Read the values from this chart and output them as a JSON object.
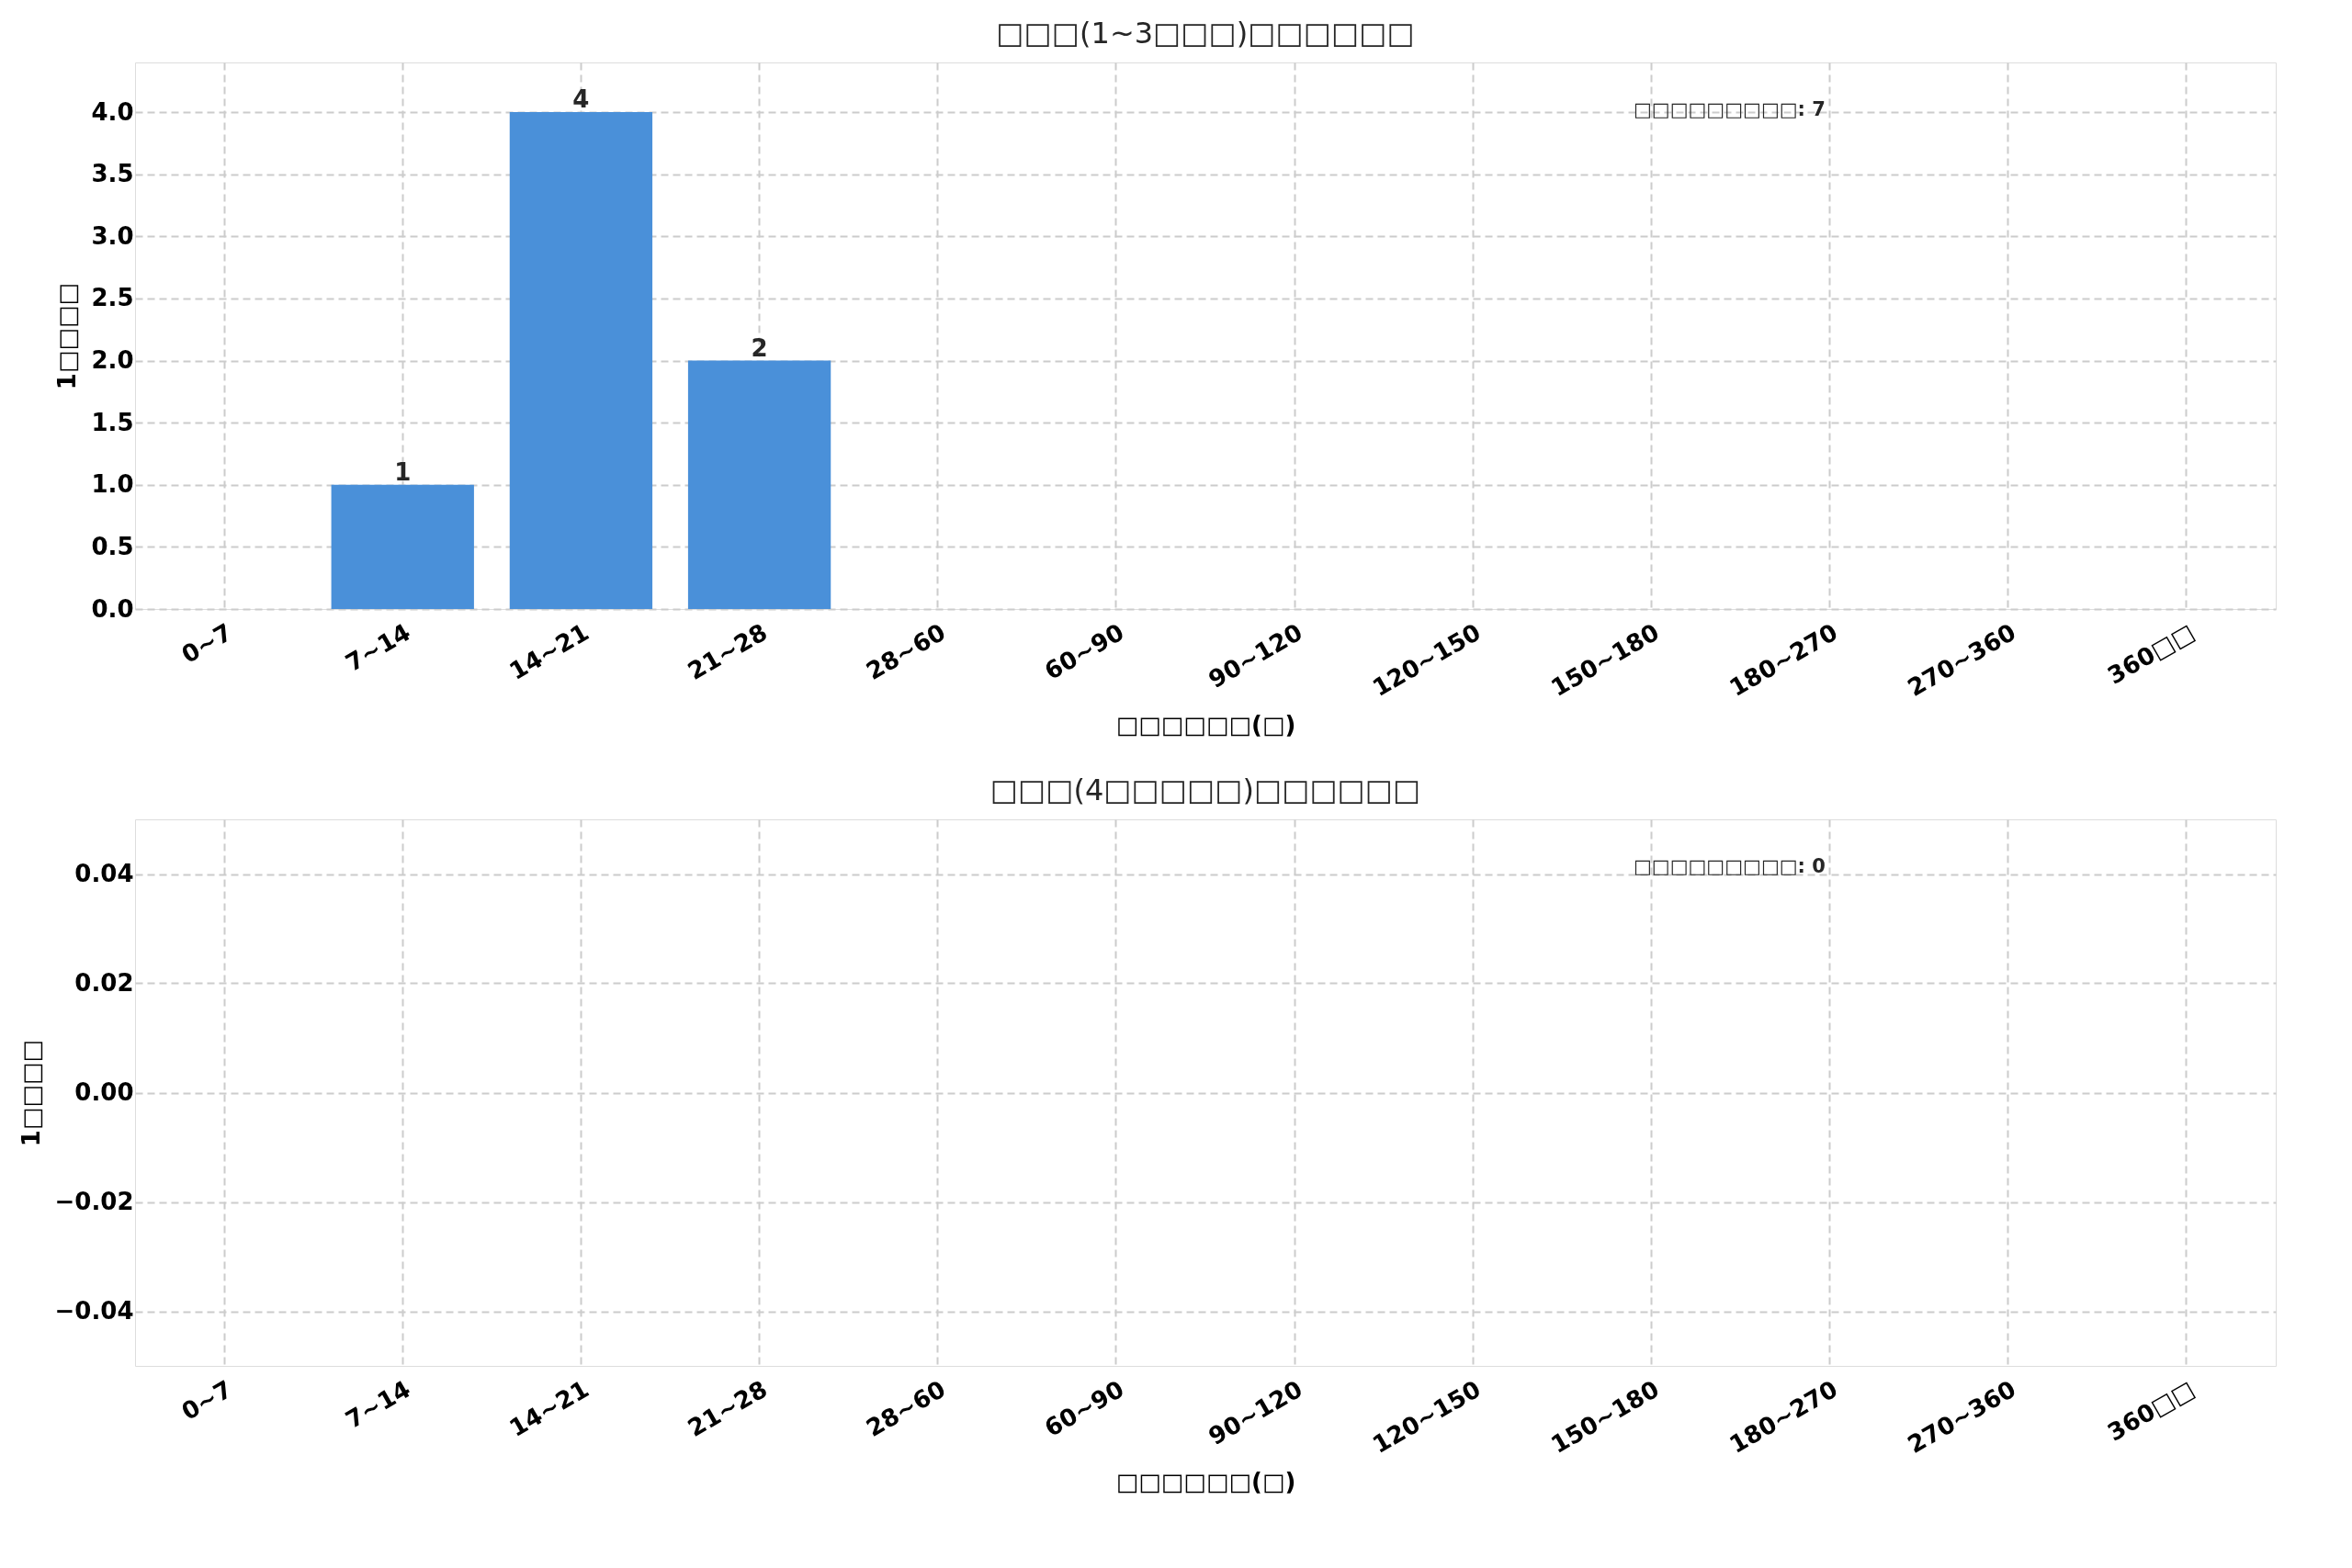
{
  "chart_data": [
    {
      "type": "bar",
      "title": "□□□(1~3□□□)□□□□□□",
      "xlabel": "□□□□□□(□)",
      "ylabel": "1□□□□",
      "categories": [
        "0~7",
        "7~14",
        "14~21",
        "21~28",
        "28~60",
        "60~90",
        "90~120",
        "120~150",
        "150~180",
        "180~270",
        "270~360",
        "360□□"
      ],
      "series": [
        {
          "color": "#4a90d9",
          "values": [
            0,
            1,
            4,
            2,
            0,
            0,
            0,
            0,
            0,
            0,
            0,
            0
          ],
          "value_labels": [
            null,
            "1",
            "4",
            "2",
            null,
            null,
            null,
            null,
            null,
            null,
            null,
            null
          ]
        }
      ],
      "ylim": [
        0,
        4.4
      ],
      "yticks": [
        {
          "value": 0,
          "label": "0.0"
        },
        {
          "value": 0.5,
          "label": "0.5"
        },
        {
          "value": 1,
          "label": "1.0"
        },
        {
          "value": 1.5,
          "label": "1.5"
        },
        {
          "value": 2,
          "label": "2.0"
        },
        {
          "value": 2.5,
          "label": "2.5"
        },
        {
          "value": 3,
          "label": "3.0"
        },
        {
          "value": 3.5,
          "label": "3.5"
        },
        {
          "value": 4,
          "label": "4.0"
        }
      ],
      "grid": true,
      "annotations": [
        "□□□□□□□□□: 7"
      ]
    },
    {
      "type": "bar",
      "title": "□□□(4□□□□□)□□□□□□",
      "xlabel": "□□□□□□(□)",
      "ylabel": "1□□□□",
      "categories": [
        "0~7",
        "7~14",
        "14~21",
        "21~28",
        "28~60",
        "60~90",
        "90~120",
        "120~150",
        "150~180",
        "180~270",
        "270~360",
        "360□□"
      ],
      "series": [
        {
          "color": "#4a90d9",
          "values": [
            0,
            0,
            0,
            0,
            0,
            0,
            0,
            0,
            0,
            0,
            0,
            0
          ]
        }
      ],
      "ylim": [
        -0.05,
        0.05
      ],
      "yticks": [
        {
          "value": -0.04,
          "label": "−0.04"
        },
        {
          "value": -0.02,
          "label": "−0.02"
        },
        {
          "value": 0,
          "label": "0.00"
        },
        {
          "value": 0.02,
          "label": "0.02"
        },
        {
          "value": 0.04,
          "label": "0.04"
        }
      ],
      "grid": true,
      "annotations": [
        "□□□□□□□□□: 0"
      ]
    }
  ]
}
